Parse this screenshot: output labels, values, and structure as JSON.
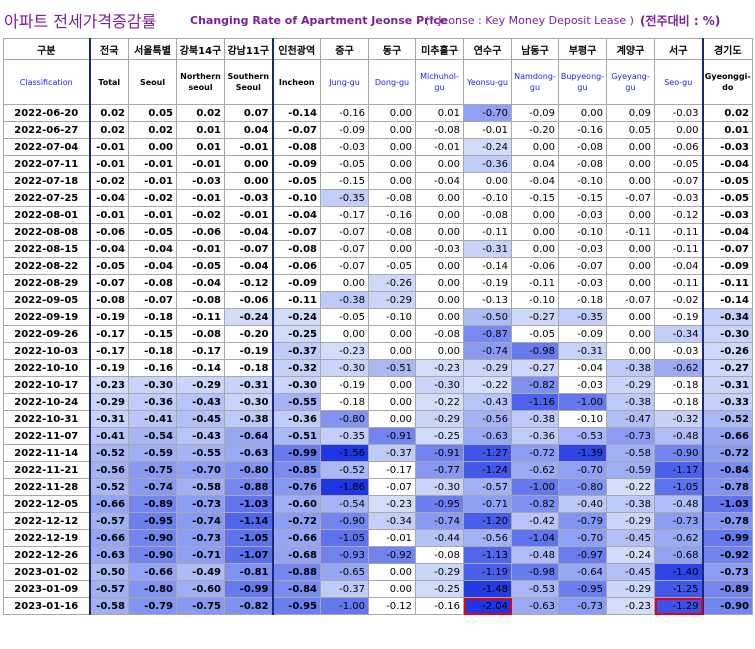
{
  "title": {
    "korean": "아파트 전세가격증감률",
    "english": "Changing Rate of Apartment Jeonse Price",
    "note": "(* Jeonse : Key Money Deposit Lease )",
    "unit": "(전주대비 : %)"
  },
  "header": {
    "class_ko": "구분",
    "class_en": "Classification",
    "columns": [
      {
        "ko": "전국",
        "en": "Total"
      },
      {
        "ko": "서울특별",
        "en": "Seoul"
      },
      {
        "ko": "강북14구",
        "en": "Northern seoul"
      },
      {
        "ko": "강남11구",
        "en": "Southern Seoul"
      },
      {
        "ko": "인천광역",
        "en": "Incheon"
      },
      {
        "ko": "중구",
        "en": "Jung-gu"
      },
      {
        "ko": "동구",
        "en": "Dong-gu"
      },
      {
        "ko": "미추홀구",
        "en": "Michuhol-gu"
      },
      {
        "ko": "연수구",
        "en": "Yeonsu-gu"
      },
      {
        "ko": "남동구",
        "en": "Namdong-gu"
      },
      {
        "ko": "부평구",
        "en": "Bupyeong-gu"
      },
      {
        "ko": "계양구",
        "en": "Gyeyang-gu"
      },
      {
        "ko": "서구",
        "en": "Seo-gu"
      },
      {
        "ko": "경기도",
        "en": "Gyeonggi-do"
      }
    ]
  },
  "rows": [
    {
      "date": "2022-06-20",
      "values": [
        "0.02",
        "0.05",
        "0.02",
        "0.07",
        "-0.14",
        "-0.16",
        "0.00",
        "0.01",
        "-0.70",
        "-0.09",
        "0.00",
        "0.09",
        "-0.03",
        "0.02"
      ]
    },
    {
      "date": "2022-06-27",
      "values": [
        "0.02",
        "0.02",
        "0.01",
        "0.04",
        "-0.07",
        "-0.09",
        "0.00",
        "-0.08",
        "-0.01",
        "-0.20",
        "-0.16",
        "0.05",
        "0.00",
        "0.01"
      ]
    },
    {
      "date": "2022-07-04",
      "values": [
        "-0.01",
        "0.00",
        "0.01",
        "-0.01",
        "-0.08",
        "-0.03",
        "0.00",
        "-0.01",
        "-0.24",
        "0.00",
        "-0.08",
        "0.00",
        "-0.06",
        "-0.03"
      ]
    },
    {
      "date": "2022-07-11",
      "values": [
        "-0.01",
        "-0.01",
        "-0.01",
        "0.00",
        "-0.09",
        "-0.05",
        "0.00",
        "0.00",
        "-0.36",
        "0.04",
        "-0.08",
        "0.00",
        "-0.05",
        "-0.04"
      ]
    },
    {
      "date": "2022-07-18",
      "values": [
        "-0.02",
        "-0.01",
        "-0.03",
        "0.00",
        "-0.05",
        "-0.15",
        "0.00",
        "-0.04",
        "0.00",
        "-0.04",
        "-0.10",
        "0.00",
        "-0.07",
        "-0.05"
      ]
    },
    {
      "date": "2022-07-25",
      "values": [
        "-0.04",
        "-0.02",
        "-0.01",
        "-0.03",
        "-0.10",
        "-0.35",
        "-0.08",
        "0.00",
        "-0.10",
        "-0.15",
        "-0.15",
        "-0.07",
        "-0.03",
        "-0.05"
      ]
    },
    {
      "date": "2022-08-01",
      "values": [
        "-0.01",
        "-0.01",
        "-0.02",
        "-0.01",
        "-0.04",
        "-0.17",
        "-0.16",
        "0.00",
        "-0.08",
        "0.00",
        "-0.03",
        "0.00",
        "-0.12",
        "-0.03"
      ]
    },
    {
      "date": "2022-08-08",
      "values": [
        "-0.06",
        "-0.05",
        "-0.06",
        "-0.04",
        "-0.07",
        "-0.07",
        "-0.08",
        "0.00",
        "-0.11",
        "0.00",
        "-0.10",
        "-0.11",
        "-0.11",
        "-0.04"
      ]
    },
    {
      "date": "2022-08-15",
      "values": [
        "-0.04",
        "-0.04",
        "-0.01",
        "-0.07",
        "-0.08",
        "-0.07",
        "0.00",
        "-0.03",
        "-0.31",
        "0.00",
        "-0.03",
        "0.00",
        "-0.11",
        "-0.07"
      ]
    },
    {
      "date": "2022-08-22",
      "values": [
        "-0.05",
        "-0.04",
        "-0.05",
        "-0.04",
        "-0.06",
        "-0.07",
        "-0.05",
        "0.00",
        "-0.14",
        "-0.06",
        "-0.07",
        "0.00",
        "-0.04",
        "-0.09"
      ]
    },
    {
      "date": "2022-08-29",
      "values": [
        "-0.07",
        "-0.08",
        "-0.04",
        "-0.12",
        "-0.09",
        "0.00",
        "-0.26",
        "0.00",
        "-0.19",
        "-0.11",
        "-0.03",
        "0.00",
        "-0.11",
        "-0.11"
      ]
    },
    {
      "date": "2022-09-05",
      "values": [
        "-0.08",
        "-0.07",
        "-0.08",
        "-0.06",
        "-0.11",
        "-0.38",
        "-0.29",
        "0.00",
        "-0.13",
        "-0.10",
        "-0.18",
        "-0.07",
        "-0.02",
        "-0.14"
      ]
    },
    {
      "date": "2022-09-19",
      "values": [
        "-0.19",
        "-0.18",
        "-0.11",
        "-0.24",
        "-0.24",
        "-0.05",
        "-0.10",
        "0.00",
        "-0.50",
        "-0.27",
        "-0.35",
        "0.00",
        "-0.19",
        "-0.34"
      ]
    },
    {
      "date": "2022-09-26",
      "values": [
        "-0.17",
        "-0.15",
        "-0.08",
        "-0.20",
        "-0.25",
        "0.00",
        "0.00",
        "-0.08",
        "-0.87",
        "-0.05",
        "-0.09",
        "0.00",
        "-0.34",
        "-0.30"
      ]
    },
    {
      "date": "2022-10-03",
      "values": [
        "-0.17",
        "-0.18",
        "-0.17",
        "-0.19",
        "-0.37",
        "-0.23",
        "0.00",
        "0.00",
        "-0.74",
        "-0.98",
        "-0.31",
        "0.00",
        "-0.03",
        "-0.26"
      ]
    },
    {
      "date": "2022-10-10",
      "values": [
        "-0.19",
        "-0.16",
        "-0.14",
        "-0.18",
        "-0.32",
        "-0.30",
        "-0.51",
        "-0.23",
        "-0.29",
        "-0.27",
        "-0.04",
        "-0.38",
        "-0.62",
        "-0.27"
      ]
    },
    {
      "date": "2022-10-17",
      "values": [
        "-0.23",
        "-0.30",
        "-0.29",
        "-0.31",
        "-0.30",
        "-0.19",
        "0.00",
        "-0.30",
        "-0.22",
        "-0.82",
        "-0.03",
        "-0.29",
        "-0.18",
        "-0.31"
      ]
    },
    {
      "date": "2022-10-24",
      "values": [
        "-0.29",
        "-0.36",
        "-0.43",
        "-0.30",
        "-0.55",
        "-0.18",
        "0.00",
        "-0.22",
        "-0.43",
        "-1.16",
        "-1.00",
        "-0.38",
        "-0.18",
        "-0.33"
      ]
    },
    {
      "date": "2022-10-31",
      "values": [
        "-0.31",
        "-0.41",
        "-0.45",
        "-0.38",
        "-0.36",
        "-0.80",
        "0.00",
        "-0.29",
        "-0.56",
        "-0.38",
        "-0.10",
        "-0.47",
        "-0.32",
        "-0.52"
      ]
    },
    {
      "date": "2022-11-07",
      "values": [
        "-0.41",
        "-0.54",
        "-0.43",
        "-0.64",
        "-0.51",
        "-0.35",
        "-0.91",
        "-0.25",
        "-0.63",
        "-0.36",
        "-0.53",
        "-0.73",
        "-0.48",
        "-0.66"
      ]
    },
    {
      "date": "2022-11-14",
      "values": [
        "-0.52",
        "-0.59",
        "-0.55",
        "-0.63",
        "-0.99",
        "-1.56",
        "-0.37",
        "-0.91",
        "-1.27",
        "-0.72",
        "-1.39",
        "-0.58",
        "-0.90",
        "-0.72"
      ]
    },
    {
      "date": "2022-11-21",
      "values": [
        "-0.56",
        "-0.75",
        "-0.70",
        "-0.80",
        "-0.85",
        "-0.52",
        "-0.17",
        "-0.77",
        "-1.24",
        "-0.62",
        "-0.70",
        "-0.59",
        "-1.17",
        "-0.84"
      ]
    },
    {
      "date": "2022-11-28",
      "values": [
        "-0.52",
        "-0.74",
        "-0.58",
        "-0.88",
        "-0.76",
        "-1.86",
        "-0.07",
        "-0.30",
        "-0.57",
        "-1.00",
        "-0.80",
        "-0.22",
        "-1.05",
        "-0.78"
      ]
    },
    {
      "date": "2022-12-05",
      "values": [
        "-0.66",
        "-0.89",
        "-0.73",
        "-1.03",
        "-0.60",
        "-0.54",
        "-0.23",
        "-0.95",
        "-0.71",
        "-0.82",
        "-0.40",
        "-0.38",
        "-0.48",
        "-1.03"
      ]
    },
    {
      "date": "2022-12-12",
      "values": [
        "-0.57",
        "-0.95",
        "-0.74",
        "-1.14",
        "-0.72",
        "-0.90",
        "-0.34",
        "-0.74",
        "-1.20",
        "-0.42",
        "-0.79",
        "-0.29",
        "-0.73",
        "-0.78"
      ]
    },
    {
      "date": "2022-12-19",
      "values": [
        "-0.66",
        "-0.90",
        "-0.73",
        "-1.05",
        "-0.66",
        "-1.05",
        "-0.01",
        "-0.44",
        "-0.56",
        "-1.04",
        "-0.70",
        "-0.45",
        "-0.62",
        "-0.99"
      ]
    },
    {
      "date": "2022-12-26",
      "values": [
        "-0.63",
        "-0.90",
        "-0.71",
        "-1.07",
        "-0.68",
        "-0.93",
        "-0.92",
        "-0.08",
        "-1.13",
        "-0.48",
        "-0.97",
        "-0.24",
        "-0.68",
        "-0.92"
      ]
    },
    {
      "date": "2023-01-02",
      "values": [
        "-0.50",
        "-0.66",
        "-0.49",
        "-0.81",
        "-0.88",
        "-0.65",
        "0.00",
        "-0.29",
        "-1.19",
        "-0.98",
        "-0.64",
        "-0.45",
        "-1.40",
        "-0.73"
      ]
    },
    {
      "date": "2023-01-09",
      "values": [
        "-0.57",
        "-0.80",
        "-0.60",
        "-0.99",
        "-0.84",
        "-0.37",
        "0.00",
        "-0.25",
        "-1.48",
        "-0.53",
        "-0.95",
        "-0.29",
        "-1.25",
        "-0.89"
      ]
    },
    {
      "date": "2023-01-16",
      "values": [
        "-0.58",
        "-0.79",
        "-0.75",
        "-0.82",
        "-0.95",
        "-1.00",
        "-0.12",
        "-0.16",
        "-2.04",
        "-0.63",
        "-0.73",
        "-0.23",
        "-1.29",
        "-0.90"
      ]
    }
  ],
  "highlighted_cells": [
    {
      "date": "2023-01-16",
      "column": "연수구"
    },
    {
      "date": "2023-01-16",
      "column": "서구"
    }
  ]
}
